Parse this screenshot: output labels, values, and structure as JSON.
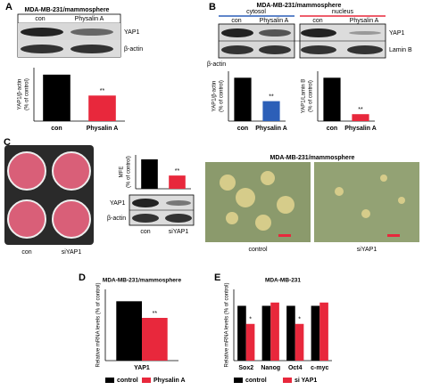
{
  "panels": {
    "A": {
      "label": "A",
      "title": "MDA-MB-231/mammosphere",
      "lanes": [
        "con",
        "Physalin A"
      ],
      "bands": [
        "YAP1",
        "β-actin"
      ]
    },
    "B": {
      "label": "B",
      "title": "MDA-MB-231/mammosphere",
      "fractions": [
        "cytosol",
        "nucleus"
      ],
      "lanes": [
        "con",
        "Physalin A",
        "con",
        "Physalin A"
      ],
      "bands": [
        "YAP1",
        "β-actin",
        "Lamin B"
      ]
    },
    "C": {
      "label": "C",
      "plate_lanes": [
        "con",
        "siYAP1"
      ],
      "blot_lanes": [
        "con",
        "siYAP1"
      ],
      "bands": [
        "YAP1",
        "β-actin"
      ],
      "micro_title": "MDA-MB-231/mammosphere",
      "micro_labels": [
        "control",
        "siYAP1"
      ]
    },
    "D": {
      "label": "D"
    },
    "E": {
      "label": "E"
    }
  },
  "chart_data": [
    {
      "type": "bar",
      "y_label": [
        "YAP1/β-actin",
        "(% of control)"
      ],
      "categories": [
        "con",
        "Physalin A"
      ],
      "values": [
        100,
        55
      ],
      "colors": [
        "#000000",
        "#e8283c"
      ],
      "annotations": [
        null,
        "**"
      ],
      "ylim": [
        0,
        115
      ]
    },
    {
      "type": "bar",
      "y_label": [
        "YAP1/β-actin",
        "(% of control)"
      ],
      "categories": [
        "con",
        "Physalin A"
      ],
      "values": [
        100,
        46
      ],
      "colors": [
        "#000000",
        "#2c5fb8"
      ],
      "annotations": [
        null,
        "**"
      ],
      "ylim": [
        0,
        115
      ]
    },
    {
      "type": "bar",
      "y_label": [
        "YAP1/Lamin B",
        "(% of control)"
      ],
      "categories": [
        "con",
        "Physalin A"
      ],
      "values": [
        100,
        16
      ],
      "colors": [
        "#000000",
        "#e8283c"
      ],
      "annotations": [
        null,
        "**"
      ],
      "ylim": [
        0,
        115
      ]
    },
    {
      "type": "bar",
      "y_label": [
        "MFE",
        "(% of control)"
      ],
      "values": [
        100,
        45
      ],
      "colors": [
        "#000000",
        "#e8283c"
      ],
      "annotations": [
        null,
        "**"
      ],
      "ylim": [
        0,
        115
      ]
    },
    {
      "type": "bar",
      "title": "MDA-MB-231/mammosphere",
      "y_label": [
        "Relative mRNA levels (% of control)"
      ],
      "categories": [
        "YAP1"
      ],
      "series": [
        {
          "name": "control",
          "color": "#000000",
          "values": [
            100
          ]
        },
        {
          "name": "Physalin A",
          "color": "#e8283c",
          "values": [
            72
          ],
          "annotations": [
            "**"
          ]
        }
      ],
      "ylim": [
        0,
        120
      ]
    },
    {
      "type": "bar",
      "title": "MDA-MB-231",
      "y_label": [
        "Relative mRNA levels (% of control)"
      ],
      "categories": [
        "Sox2",
        "Nanog",
        "Oct4",
        "c-myc"
      ],
      "series": [
        {
          "name": "control",
          "color": "#000000",
          "values": [
            100,
            100,
            100,
            100
          ]
        },
        {
          "name": "si YAP1",
          "color": "#e8283c",
          "values": [
            67,
            106,
            67,
            106
          ],
          "annotations": [
            "*",
            null,
            "*",
            null
          ]
        }
      ],
      "ylim": [
        0,
        130
      ]
    }
  ]
}
